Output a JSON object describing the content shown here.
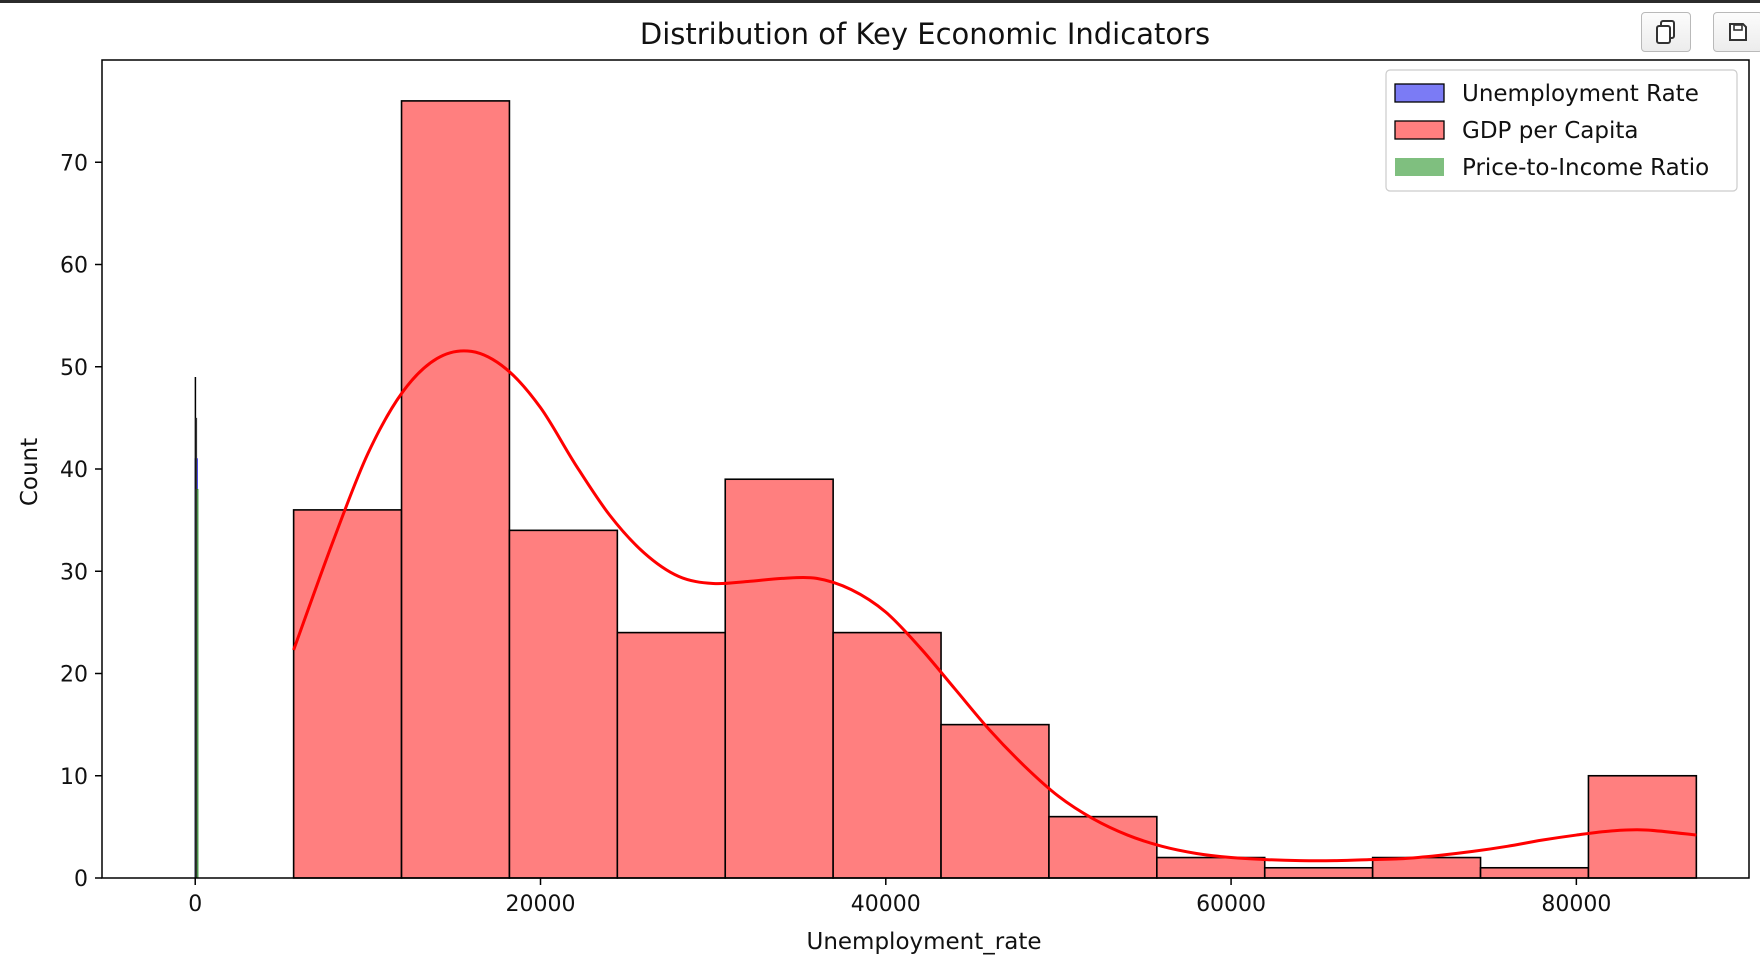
{
  "toolbar": {
    "copy_icon": "copy-icon",
    "save_icon": "save-icon"
  },
  "chart_data": {
    "type": "bar",
    "title": "Distribution of Key Economic Indicators",
    "xlabel": "Unemployment_rate",
    "ylabel": "Count",
    "xlim": [
      -5400,
      90000
    ],
    "ylim": [
      0,
      80
    ],
    "xticks": [
      0,
      20000,
      40000,
      60000,
      80000
    ],
    "xtick_labels": [
      "0",
      "20000",
      "40000",
      "60000",
      "80000"
    ],
    "yticks": [
      0,
      10,
      20,
      30,
      40,
      50,
      60,
      70
    ],
    "ytick_labels": [
      "0",
      "10",
      "20",
      "30",
      "40",
      "50",
      "60",
      "70"
    ],
    "grid": false,
    "legend_position": "top-right",
    "legend": [
      "Unemployment Rate",
      "GDP per Capita",
      "Price-to-Income Ratio"
    ],
    "series": [
      {
        "name": "Unemployment Rate",
        "type": "histogram",
        "color": "#0000ff",
        "fill": "#7b7bf5",
        "bin_edges": [
          0,
          20
        ],
        "values": [
          41
        ],
        "kde_peak": 49
      },
      {
        "name": "GDP per Capita",
        "type": "histogram",
        "color": "#ff0000",
        "fill": "#ff7f7f",
        "bin_edges": [
          5700,
          11950,
          18200,
          24450,
          30700,
          36950,
          43200,
          49450,
          55700,
          61950,
          68200,
          74450,
          80700,
          86950
        ],
        "values": [
          36,
          76,
          34,
          24,
          39,
          24,
          15,
          6,
          2,
          1,
          2,
          1,
          10
        ],
        "kde": {
          "x": [
            5700,
            8000,
            10000,
            12000,
            14000,
            16000,
            18000,
            20000,
            22000,
            24000,
            26000,
            28000,
            30000,
            32000,
            34000,
            36000,
            38000,
            40000,
            42000,
            44000,
            46000,
            48000,
            50000,
            52000,
            54000,
            56000,
            58000,
            60000,
            62000,
            64000,
            66000,
            68000,
            70000,
            72000,
            74000,
            76000,
            78000,
            80000,
            82000,
            84000,
            86950
          ],
          "y": [
            22.3,
            33.0,
            41.5,
            47.5,
            50.8,
            51.5,
            49.8,
            46.0,
            40.5,
            35.5,
            31.8,
            29.5,
            28.8,
            29.0,
            29.3,
            29.3,
            28.2,
            26.0,
            22.5,
            18.5,
            14.5,
            11.0,
            8.0,
            5.8,
            4.2,
            3.1,
            2.4,
            2.0,
            1.8,
            1.7,
            1.7,
            1.8,
            1.9,
            2.2,
            2.6,
            3.1,
            3.7,
            4.2,
            4.6,
            4.7,
            4.2
          ]
        }
      },
      {
        "name": "Price-to-Income Ratio",
        "type": "histogram",
        "color": "#2e8b2e",
        "fill": "#7fbf7f",
        "bin_edges": [
          40,
          90
        ],
        "values": [
          38
        ],
        "kde_peak": 45
      }
    ]
  }
}
